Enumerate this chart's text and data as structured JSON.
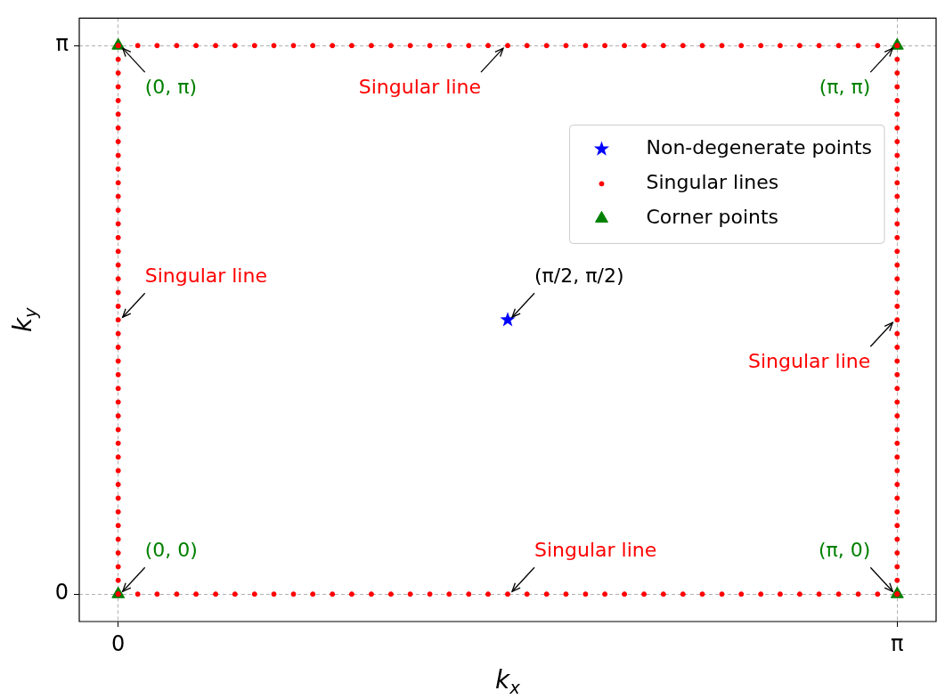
{
  "chart_data": {
    "type": "scatter",
    "xlabel": "k$_{x}$",
    "ylabel": "k$_{y}$",
    "xlim": [
      -0.157,
      3.299
    ],
    "ylim": [
      -0.157,
      3.299
    ],
    "xticks": [
      0,
      {
        "value": 3.14159,
        "label": "π"
      }
    ],
    "yticks": [
      0,
      {
        "value": 3.14159,
        "label": "π"
      }
    ],
    "grid": true,
    "legend": "top right",
    "series": [
      {
        "name": "Non-degenerate points",
        "color": "#0000ff",
        "marker": "star",
        "x": [
          1.571
        ],
        "values": [
          1.571
        ]
      },
      {
        "name": "Singular lines",
        "color": "#ff0000",
        "marker": "circle",
        "x": [
          0,
          0.079,
          0.157,
          0.236,
          0.314,
          0.393,
          0.471,
          0.55,
          0.628,
          0.707,
          0.785,
          0.864,
          0.942,
          1.021,
          1.1,
          1.178,
          1.257,
          1.335,
          1.414,
          1.492,
          1.571,
          1.649,
          1.728,
          1.806,
          1.885,
          1.963,
          2.042,
          2.121,
          2.199,
          2.278,
          2.356,
          2.435,
          2.513,
          2.592,
          2.67,
          2.749,
          2.827,
          2.906,
          2.985,
          3.063,
          3.142,
          0,
          0.079,
          0.157,
          0.236,
          0.314,
          0.393,
          0.471,
          0.55,
          0.628,
          0.707,
          0.785,
          0.864,
          0.942,
          1.021,
          1.1,
          1.178,
          1.257,
          1.335,
          1.414,
          1.492,
          1.571,
          1.649,
          1.728,
          1.806,
          1.885,
          1.963,
          2.042,
          2.121,
          2.199,
          2.278,
          2.356,
          2.435,
          2.513,
          2.592,
          2.67,
          2.749,
          2.827,
          2.906,
          2.985,
          3.063,
          3.142,
          0,
          0,
          0,
          0,
          0,
          0,
          0,
          0,
          0,
          0,
          0,
          0,
          0,
          0,
          0,
          0,
          0,
          0,
          0,
          0,
          0,
          0,
          0,
          0,
          0,
          0,
          0,
          0,
          0,
          0,
          0,
          0,
          0,
          0,
          0,
          0,
          0,
          0,
          0,
          0,
          0,
          3.142,
          3.142,
          3.142,
          3.142,
          3.142,
          3.142,
          3.142,
          3.142,
          3.142,
          3.142,
          3.142,
          3.142,
          3.142,
          3.142,
          3.142,
          3.142,
          3.142,
          3.142,
          3.142,
          3.142,
          3.142,
          3.142,
          3.142,
          3.142,
          3.142,
          3.142,
          3.142,
          3.142,
          3.142,
          3.142,
          3.142,
          3.142,
          3.142,
          3.142,
          3.142,
          3.142,
          3.142,
          3.142,
          3.142,
          3.142,
          3.142
        ],
        "values": [
          0,
          0,
          0,
          0,
          0,
          0,
          0,
          0,
          0,
          0,
          0,
          0,
          0,
          0,
          0,
          0,
          0,
          0,
          0,
          0,
          0,
          0,
          0,
          0,
          0,
          0,
          0,
          0,
          0,
          0,
          0,
          0,
          0,
          0,
          0,
          0,
          0,
          0,
          0,
          0,
          0,
          3.142,
          3.142,
          3.142,
          3.142,
          3.142,
          3.142,
          3.142,
          3.142,
          3.142,
          3.142,
          3.142,
          3.142,
          3.142,
          3.142,
          3.142,
          3.142,
          3.142,
          3.142,
          3.142,
          3.142,
          3.142,
          3.142,
          3.142,
          3.142,
          3.142,
          3.142,
          3.142,
          3.142,
          3.142,
          3.142,
          3.142,
          3.142,
          3.142,
          3.142,
          3.142,
          3.142,
          3.142,
          3.142,
          3.142,
          3.142,
          3.142,
          0,
          0.079,
          0.157,
          0.236,
          0.314,
          0.393,
          0.471,
          0.55,
          0.628,
          0.707,
          0.785,
          0.864,
          0.942,
          1.021,
          1.1,
          1.178,
          1.257,
          1.335,
          1.414,
          1.492,
          1.571,
          1.649,
          1.728,
          1.806,
          1.885,
          1.963,
          2.042,
          2.121,
          2.199,
          2.278,
          2.356,
          2.435,
          2.513,
          2.592,
          2.67,
          2.749,
          2.827,
          2.906,
          2.985,
          3.063,
          3.142,
          0,
          0.079,
          0.157,
          0.236,
          0.314,
          0.393,
          0.471,
          0.55,
          0.628,
          0.707,
          0.785,
          0.864,
          0.942,
          1.021,
          1.1,
          1.178,
          1.257,
          1.335,
          1.414,
          1.492,
          1.571,
          1.649,
          1.728,
          1.806,
          1.885,
          1.963,
          2.042,
          2.121,
          2.199,
          2.278,
          2.356,
          2.435,
          2.513,
          2.592,
          2.67,
          2.749,
          2.827,
          2.906,
          2.985,
          3.063,
          3.142
        ]
      },
      {
        "name": "Corner points",
        "color": "#008000",
        "marker": "triangle",
        "x": [
          0,
          3.142,
          0,
          3.142
        ],
        "values": [
          0,
          0,
          3.142,
          3.142
        ]
      }
    ],
    "annotations": [
      {
        "text": "(0, π)",
        "x": 0,
        "y": 3.142
      },
      {
        "text": "Singular line",
        "x": 1.571,
        "y": 3.142
      },
      {
        "text": "(π, π)",
        "x": 3.142,
        "y": 3.142
      },
      {
        "text": "Singular line",
        "x": 0,
        "y": 1.571
      },
      {
        "text": "(π/2, π/2)",
        "x": 1.571,
        "y": 1.571
      },
      {
        "text": "Singular line",
        "x": 3.142,
        "y": 1.571
      },
      {
        "text": "(0, 0)",
        "x": 0,
        "y": 0
      },
      {
        "text": "Singular line",
        "x": 1.571,
        "y": 0
      },
      {
        "text": "(π, 0)",
        "x": 3.142,
        "y": 0
      }
    ]
  }
}
